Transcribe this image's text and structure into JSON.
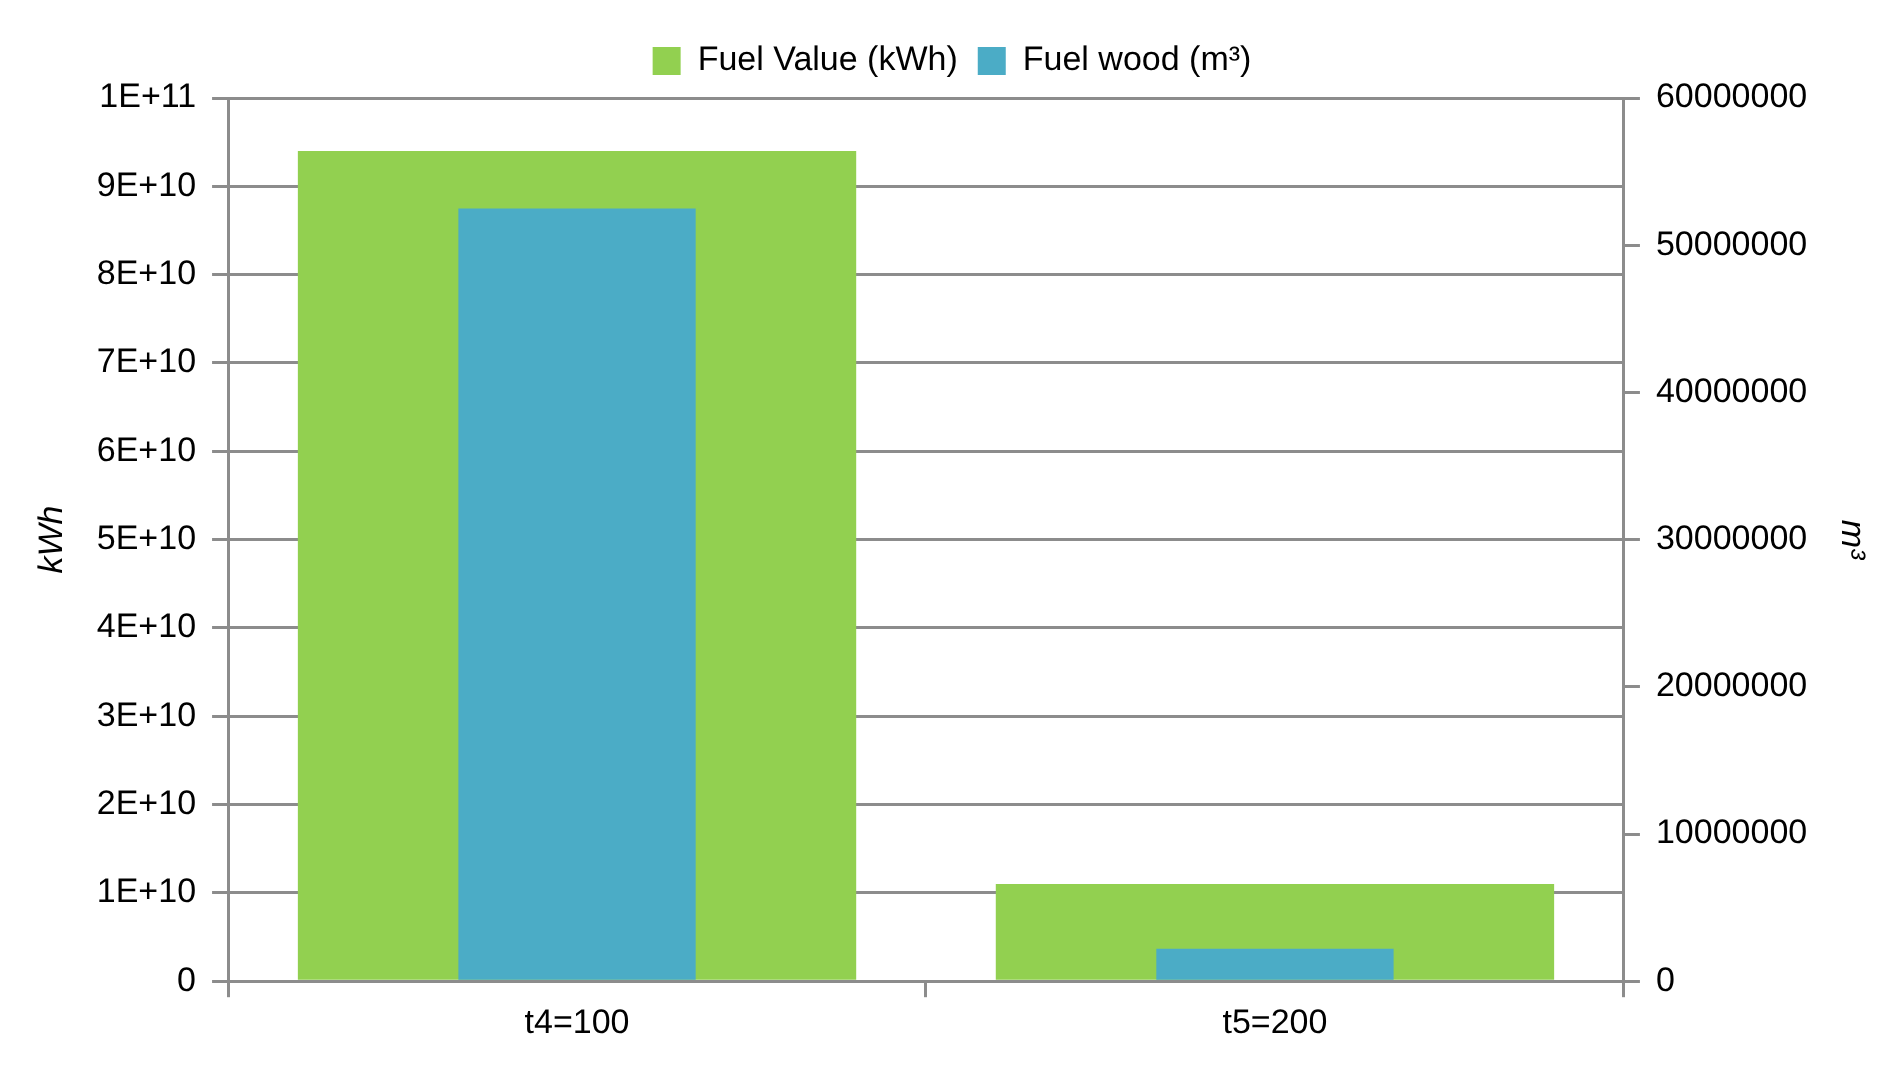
{
  "chart_data": {
    "type": "bar",
    "categories": [
      "t4=100",
      "t5=200"
    ],
    "series": [
      {
        "name": "Fuel Value (kWh)",
        "color": "#92d050",
        "values": [
          94000000000,
          11000000000
        ]
      },
      {
        "name": "Fuel wood (m³)",
        "color": "#4bacc6",
        "values": [
          52500000,
          2200000
        ],
        "axis": "y2"
      }
    ],
    "ylabel": "kWh",
    "y2label": "m³",
    "ylim": [
      0,
      100000000000
    ],
    "yticks": [
      0,
      {
        "value": 10000000000,
        "label": "1E+10"
      },
      {
        "value": 20000000000,
        "label": "2E+10"
      },
      {
        "value": 30000000000,
        "label": "3E+10"
      },
      {
        "value": 40000000000,
        "label": "4E+10"
      },
      {
        "value": 50000000000,
        "label": "5E+10"
      },
      {
        "value": 60000000000,
        "label": "6E+10"
      },
      {
        "value": 70000000000,
        "label": "7E+10"
      },
      {
        "value": 80000000000,
        "label": "8E+10"
      },
      {
        "value": 90000000000,
        "label": "9E+10"
      },
      {
        "value": 100000000000,
        "label": "1E+11"
      }
    ],
    "y2lim": [
      0,
      60000000
    ],
    "y2ticks": [
      0,
      10000000,
      20000000,
      30000000,
      40000000,
      50000000,
      60000000
    ],
    "grid": "y",
    "legend": "top"
  }
}
